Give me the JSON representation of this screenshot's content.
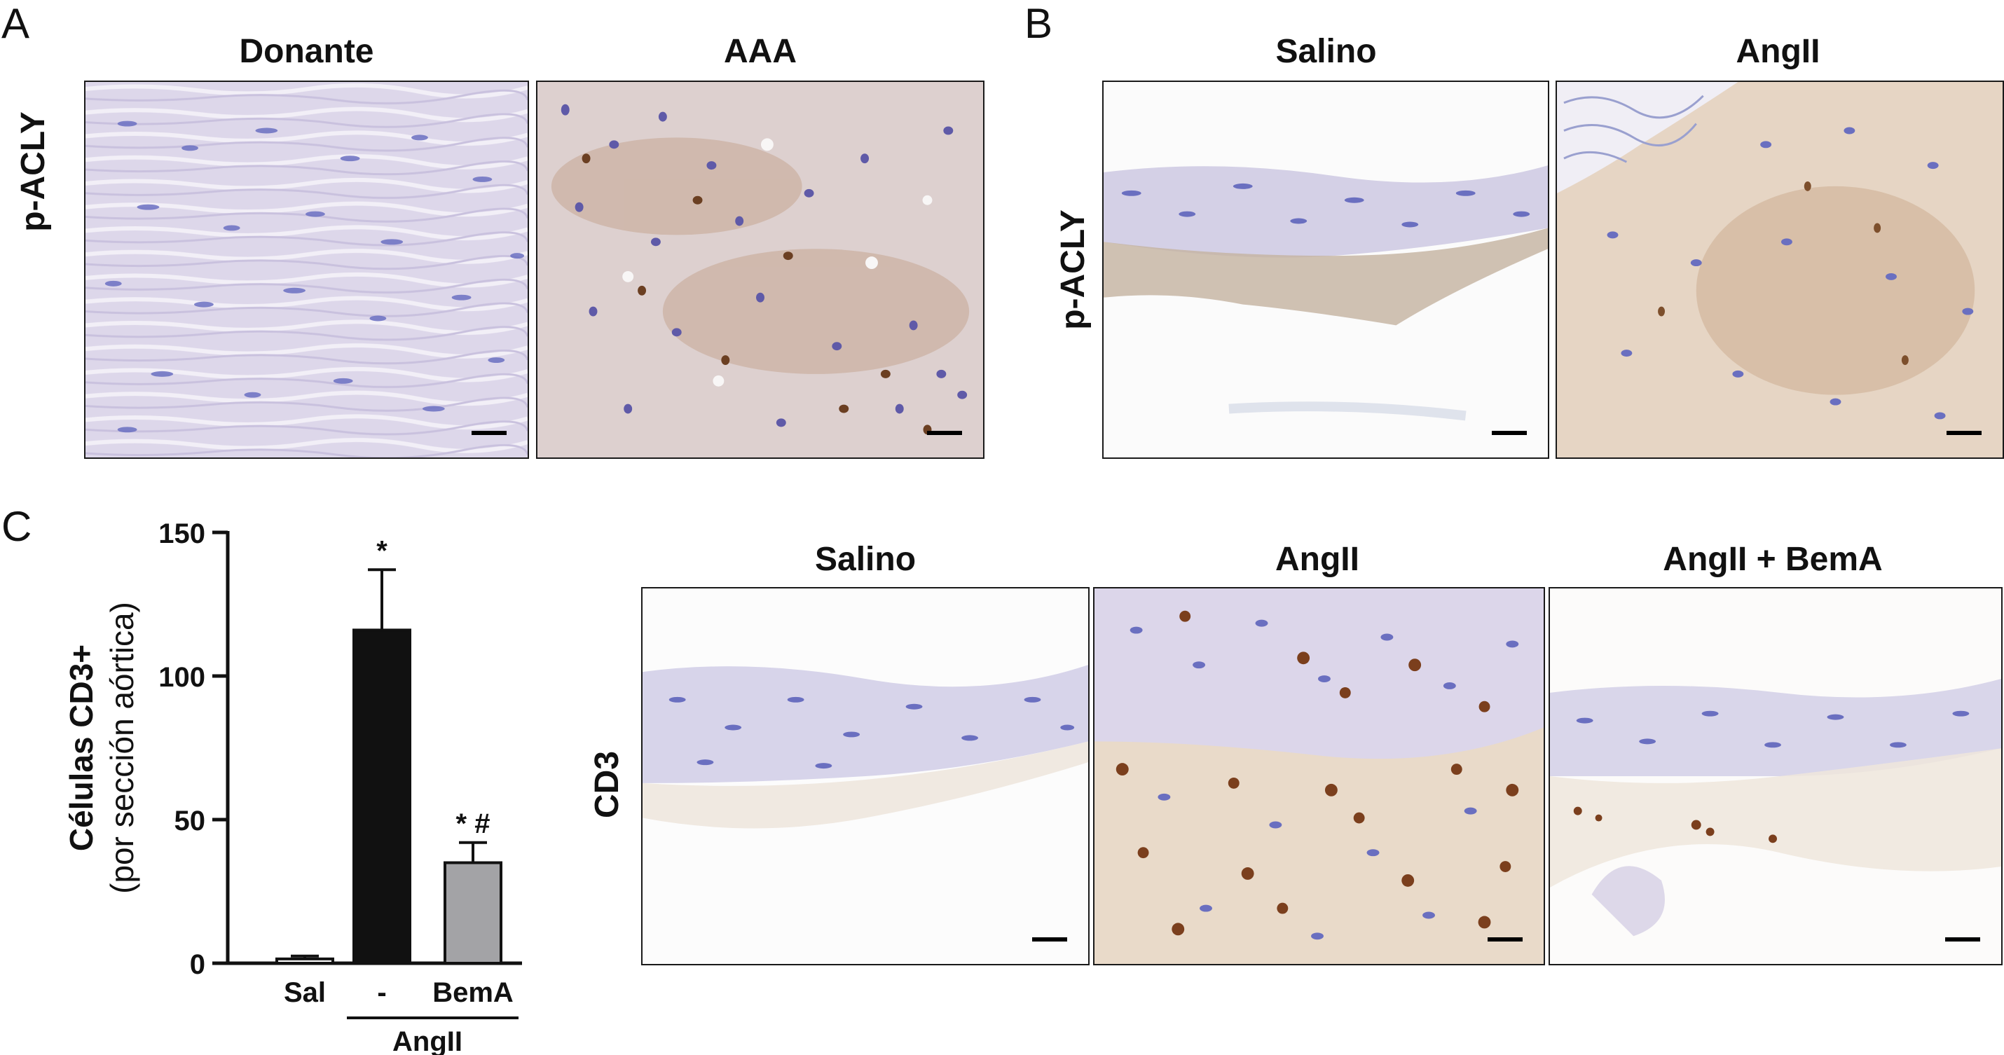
{
  "panels": {
    "A": {
      "letter": "A",
      "row_label": "p-ACLY",
      "columns": [
        "Donante",
        "AAA"
      ]
    },
    "B": {
      "letter": "B",
      "row_label": "p-ACLY",
      "columns": [
        "Salino",
        "AngII"
      ]
    },
    "C": {
      "letter": "C",
      "row_label": "CD3",
      "columns": [
        "Salino",
        "AngII",
        "AngII + BemA"
      ]
    }
  },
  "colors": {
    "hematoxylin": "#6a6fc0",
    "dab": "#8a5a2e",
    "tissue_purple": "#d9d3e8",
    "tissue_tan": "#e6d3bf",
    "bar_black": "#111111",
    "bar_gray": "#a3a3a6"
  },
  "chart_data": {
    "type": "bar",
    "categories": [
      "Sal",
      "-",
      "BemA"
    ],
    "group_label": "AngII",
    "values": [
      1.5,
      116,
      35
    ],
    "errors": [
      1,
      21,
      7
    ],
    "annotations": [
      "",
      "*",
      "* #"
    ],
    "ylabel": "Células CD3+",
    "ylabel_sub": "(por sección aórtica)",
    "ylim": [
      0,
      150
    ],
    "yticks": [
      0,
      50,
      100,
      150
    ],
    "bar_colors": [
      "#ffffff",
      "#111111",
      "#a3a3a6"
    ],
    "grid": false
  }
}
